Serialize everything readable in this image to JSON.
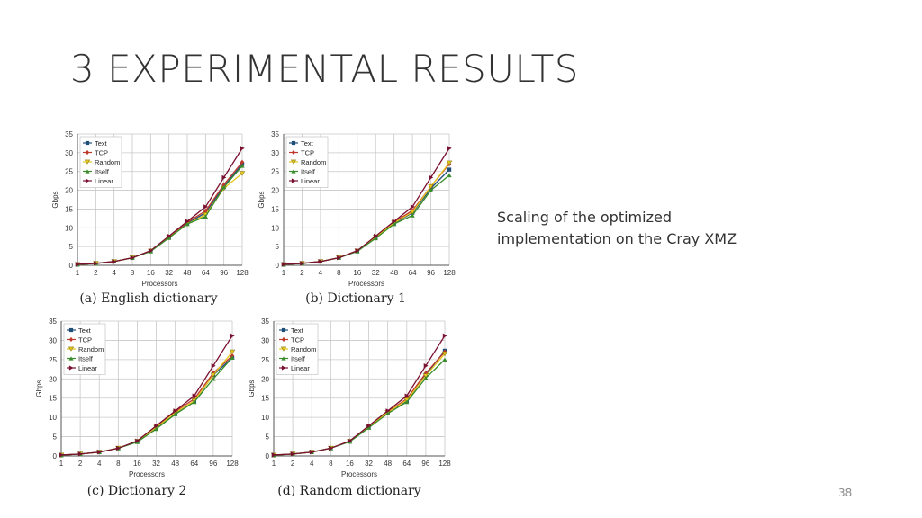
{
  "slide": {
    "title": "3 EXPERIMENTAL RESULTS",
    "caption": "Scaling of the optimized implementation on the Cray XMZ",
    "page_number": "38"
  },
  "colors": {
    "Text": "#1f4e79",
    "TCP": "#c0392b",
    "Random": "#e6c81e",
    "Itself": "#3a8c2c",
    "Linear": "#7a1030",
    "grid": "#c8c8c8",
    "axis": "#555555"
  },
  "chart_data": [
    {
      "type": "line",
      "caption": "(a) English dictionary",
      "xlabel": "Processors",
      "ylabel": "Gbps",
      "categories": [
        "1",
        "2",
        "4",
        "8",
        "16",
        "32",
        "48",
        "64",
        "96",
        "128"
      ],
      "yticks": [
        "0",
        "5",
        "10",
        "15",
        "20",
        "25",
        "30",
        "35"
      ],
      "ylim": [
        0,
        35
      ],
      "grid": true,
      "legend_position": "top-left",
      "series": [
        {
          "name": "Text",
          "marker": "square",
          "values": [
            0.2,
            0.5,
            1.0,
            2.0,
            3.8,
            7.5,
            11.2,
            14.0,
            21.0,
            27.0
          ]
        },
        {
          "name": "TCP",
          "marker": "diamond",
          "values": [
            0.2,
            0.5,
            1.0,
            2.0,
            3.9,
            7.6,
            11.5,
            14.5,
            21.5,
            27.5
          ]
        },
        {
          "name": "Random",
          "marker": "triangle-down",
          "values": [
            0.2,
            0.5,
            1.0,
            2.0,
            3.8,
            7.4,
            11.0,
            13.5,
            20.5,
            24.5
          ]
        },
        {
          "name": "Itself",
          "marker": "triangle-up",
          "values": [
            0.2,
            0.5,
            1.0,
            2.0,
            3.7,
            7.3,
            11.0,
            13.0,
            20.8,
            26.5
          ]
        },
        {
          "name": "Linear",
          "marker": "triangle-right",
          "values": [
            0.25,
            0.5,
            1.0,
            2.0,
            3.9,
            7.8,
            11.7,
            15.6,
            23.4,
            31.2
          ]
        }
      ]
    },
    {
      "type": "line",
      "caption": "(b) Dictionary 1",
      "xlabel": "Processors",
      "ylabel": "Gbps",
      "categories": [
        "1",
        "2",
        "4",
        "8",
        "16",
        "32",
        "48",
        "64",
        "96",
        "128"
      ],
      "yticks": [
        "0",
        "5",
        "10",
        "15",
        "20",
        "25",
        "30",
        "35"
      ],
      "ylim": [
        0,
        35
      ],
      "grid": true,
      "legend_position": "top-left",
      "series": [
        {
          "name": "Text",
          "marker": "square",
          "values": [
            0.2,
            0.5,
            1.0,
            2.0,
            3.8,
            7.4,
            11.2,
            14.0,
            20.5,
            25.5
          ]
        },
        {
          "name": "TCP",
          "marker": "diamond",
          "values": [
            0.2,
            0.5,
            1.0,
            2.0,
            3.9,
            7.6,
            11.5,
            14.6,
            21.0,
            27.0
          ]
        },
        {
          "name": "Random",
          "marker": "triangle-down",
          "values": [
            0.2,
            0.5,
            1.0,
            2.0,
            3.8,
            7.5,
            11.3,
            14.2,
            21.0,
            27.3
          ]
        },
        {
          "name": "Itself",
          "marker": "triangle-up",
          "values": [
            0.2,
            0.5,
            1.0,
            2.0,
            3.7,
            7.2,
            11.0,
            13.3,
            20.0,
            24.0
          ]
        },
        {
          "name": "Linear",
          "marker": "triangle-right",
          "values": [
            0.25,
            0.5,
            1.0,
            2.0,
            3.9,
            7.8,
            11.7,
            15.6,
            23.4,
            31.2
          ]
        }
      ]
    },
    {
      "type": "line",
      "caption": "(c) Dictionary 2",
      "xlabel": "Processors",
      "ylabel": "Gbps",
      "categories": [
        "1",
        "2",
        "4",
        "8",
        "16",
        "32",
        "48",
        "64",
        "96",
        "128"
      ],
      "yticks": [
        "0",
        "5",
        "10",
        "15",
        "20",
        "25",
        "30",
        "35"
      ],
      "ylim": [
        0,
        35
      ],
      "grid": true,
      "legend_position": "top-left",
      "series": [
        {
          "name": "Text",
          "marker": "square",
          "values": [
            0.2,
            0.5,
            1.0,
            2.0,
            3.7,
            7.2,
            11.0,
            14.2,
            21.0,
            25.5
          ]
        },
        {
          "name": "TCP",
          "marker": "diamond",
          "values": [
            0.2,
            0.5,
            1.0,
            2.0,
            3.8,
            7.5,
            11.5,
            14.8,
            21.5,
            26.0
          ]
        },
        {
          "name": "Random",
          "marker": "triangle-down",
          "values": [
            0.2,
            0.5,
            1.0,
            2.0,
            3.8,
            7.4,
            11.2,
            14.3,
            21.0,
            27.0
          ]
        },
        {
          "name": "Itself",
          "marker": "triangle-up",
          "values": [
            0.2,
            0.5,
            1.0,
            2.0,
            3.6,
            7.0,
            10.8,
            14.0,
            20.0,
            25.5
          ]
        },
        {
          "name": "Linear",
          "marker": "triangle-right",
          "values": [
            0.25,
            0.5,
            1.0,
            2.0,
            3.9,
            7.8,
            11.7,
            15.6,
            23.4,
            31.2
          ]
        }
      ]
    },
    {
      "type": "line",
      "caption": "(d) Random dictionary",
      "xlabel": "Processors",
      "ylabel": "Gbps",
      "categories": [
        "1",
        "2",
        "4",
        "8",
        "16",
        "32",
        "48",
        "64",
        "96",
        "128"
      ],
      "yticks": [
        "0",
        "5",
        "10",
        "15",
        "20",
        "25",
        "30",
        "35"
      ],
      "ylim": [
        0,
        35
      ],
      "grid": true,
      "legend_position": "top-left",
      "series": [
        {
          "name": "Text",
          "marker": "square",
          "values": [
            0.2,
            0.5,
            1.0,
            2.0,
            3.8,
            7.4,
            11.2,
            14.3,
            21.0,
            27.3
          ]
        },
        {
          "name": "TCP",
          "marker": "diamond",
          "values": [
            0.2,
            0.5,
            1.0,
            2.0,
            3.9,
            7.6,
            11.5,
            14.8,
            21.5,
            27.0
          ]
        },
        {
          "name": "Random",
          "marker": "triangle-down",
          "values": [
            0.2,
            0.5,
            1.0,
            2.0,
            3.8,
            7.5,
            11.3,
            14.5,
            20.8,
            26.5
          ]
        },
        {
          "name": "Itself",
          "marker": "triangle-up",
          "values": [
            0.2,
            0.5,
            1.0,
            2.0,
            3.7,
            7.3,
            11.0,
            14.0,
            20.2,
            25.0
          ]
        },
        {
          "name": "Linear",
          "marker": "triangle-right",
          "values": [
            0.25,
            0.5,
            1.0,
            2.0,
            3.9,
            7.8,
            11.7,
            15.6,
            23.4,
            31.2
          ]
        }
      ]
    }
  ]
}
